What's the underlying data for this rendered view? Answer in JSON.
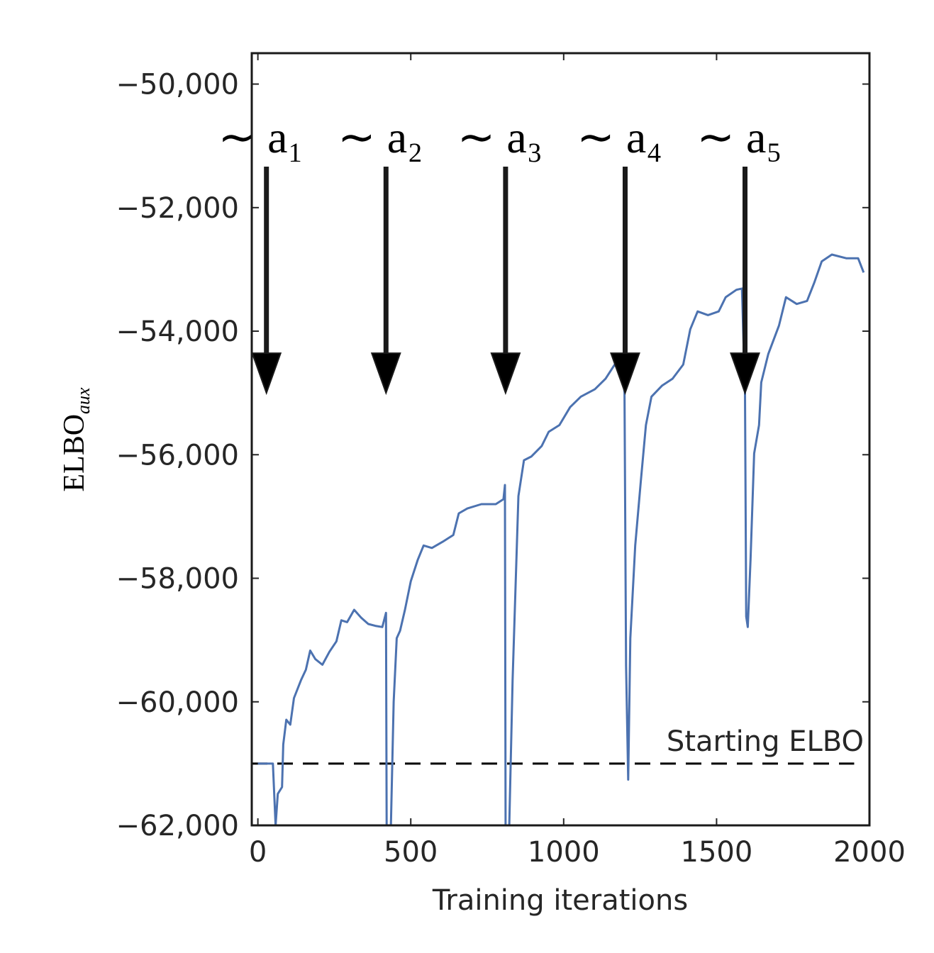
{
  "chart_data": {
    "type": "line",
    "x_label": "Training iterations",
    "y_label": "ELBO",
    "y_label_sub": "aux",
    "xlim": [
      -20,
      2000
    ],
    "ylim": [
      -62000,
      -49500
    ],
    "xticks": [
      0,
      500,
      1000,
      1500,
      2000
    ],
    "yticks": [
      {
        "value": -50000,
        "label": "−50,000"
      },
      {
        "value": -52000,
        "label": "−52,000"
      },
      {
        "value": -54000,
        "label": "−54,000"
      },
      {
        "value": -56000,
        "label": "−56,000"
      },
      {
        "value": -58000,
        "label": "−58,000"
      },
      {
        "value": -60000,
        "label": "−60,000"
      },
      {
        "value": -62000,
        "label": "−62,000"
      }
    ],
    "grid": false,
    "series": [
      {
        "color": "#4c72b0",
        "x": [
          0,
          49,
          58,
          65,
          79,
          83,
          93,
          106,
          118,
          141,
          157,
          171,
          188,
          211,
          234,
          257,
          273,
          292,
          315,
          338,
          361,
          384,
          407,
          419,
          421,
          435,
          444,
          454,
          465,
          481,
          500,
          523,
          542,
          569,
          604,
          639,
          657,
          685,
          731,
          778,
          803,
          808,
          810,
          822,
          833,
          852,
          870,
          894,
          928,
          951,
          986,
          1021,
          1056,
          1102,
          1137,
          1167,
          1194,
          1199,
          1204,
          1211,
          1218,
          1234,
          1252,
          1269,
          1287,
          1322,
          1356,
          1391,
          1414,
          1438,
          1472,
          1507,
          1530,
          1565,
          1583,
          1593,
          1597,
          1602,
          1611,
          1623,
          1639,
          1646,
          1669,
          1704,
          1727,
          1762,
          1796,
          1819,
          1844,
          1877,
          1924,
          1963,
          1981
        ],
        "values": [
          -61000,
          -61000,
          -62000,
          -61490,
          -61380,
          -60690,
          -60290,
          -60370,
          -59940,
          -59650,
          -59480,
          -59170,
          -59310,
          -59400,
          -59190,
          -59020,
          -58680,
          -58710,
          -58510,
          -58640,
          -58740,
          -58770,
          -58790,
          -58560,
          -62000,
          -62000,
          -60000,
          -58970,
          -58850,
          -58510,
          -58050,
          -57700,
          -57470,
          -57510,
          -57410,
          -57300,
          -56950,
          -56870,
          -56800,
          -56800,
          -56720,
          -56490,
          -62000,
          -62000,
          -59650,
          -56670,
          -56090,
          -56030,
          -55860,
          -55630,
          -55520,
          -55230,
          -55060,
          -54940,
          -54770,
          -54540,
          -54710,
          -55000,
          -59420,
          -61260,
          -58970,
          -57470,
          -56440,
          -55520,
          -55060,
          -54880,
          -54770,
          -54540,
          -53970,
          -53680,
          -53740,
          -53680,
          -53450,
          -53330,
          -53310,
          -55000,
          -58620,
          -58790,
          -57700,
          -55980,
          -55520,
          -54830,
          -54370,
          -53910,
          -53450,
          -53560,
          -53510,
          -53220,
          -52870,
          -52760,
          -52820,
          -52820,
          -53050
        ]
      }
    ],
    "hlines": [
      {
        "y": -61000,
        "label": "Starting ELBO",
        "color": "#000000",
        "style": "dashed"
      }
    ],
    "annotations": [
      {
        "label": "∼ a₁",
        "x": 28,
        "y": -55000
      },
      {
        "label": "∼ a₂",
        "x": 419,
        "y": -55000
      },
      {
        "label": "∼ a₃",
        "x": 810,
        "y": -55000
      },
      {
        "label": "∼ a₄",
        "x": 1201,
        "y": -55000
      },
      {
        "label": "∼ a₅",
        "x": 1593,
        "y": -55000
      }
    ]
  }
}
